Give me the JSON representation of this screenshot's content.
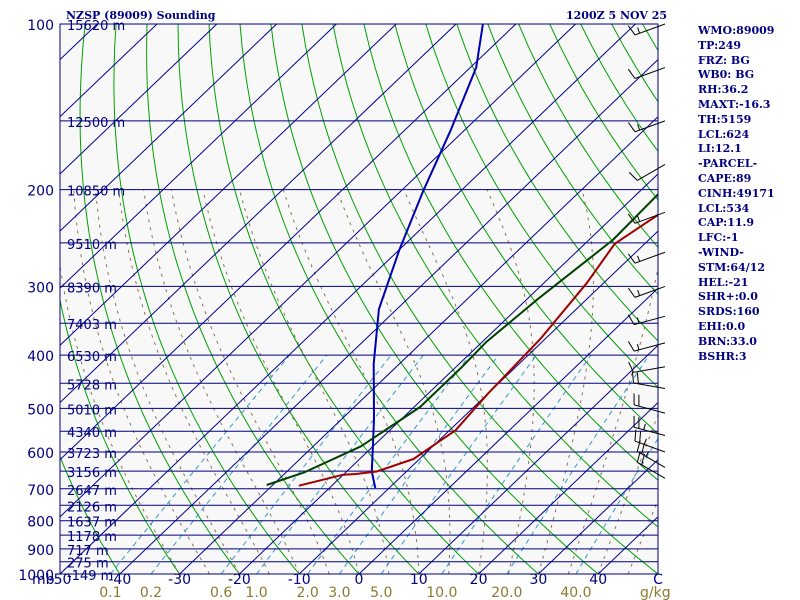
{
  "header": {
    "station": "NZSP (89009) Sounding",
    "datetime": "1200Z  5 NOV 25"
  },
  "indices": [
    "WMO:89009",
    "TP:249",
    "FRZ: BG",
    "WB0: BG",
    "RH:36.2",
    "MAXT:-16.3",
    "TH:5159",
    "LCL:624",
    "LI:12.1",
    "-PARCEL-",
    "CAPE:89",
    "CINH:49171",
    "LCL:534",
    "CAP:11.9",
    "LFC:-1",
    "-WIND-",
    "STM:64/12",
    "HEL:-21",
    "SHR+:0.0",
    "SRDS:160",
    "EHI:0.0",
    "BRN:33.0",
    "BSHR:3"
  ],
  "colors": {
    "isobar": "#000080",
    "isotherm": "#00008b",
    "dry_adiabat": "#00a000",
    "moist_adiabat": "#8b7355",
    "mixing_ratio": "#3399cc",
    "temperature": "#a00000",
    "dewpoint": "#004000",
    "parcel": "#0000b0",
    "text": "#000080",
    "mixing_label": "#8b7a30",
    "background": "#f8f8f8"
  },
  "chart_data": {
    "type": "skew-t",
    "x_unit": "degC",
    "y_unit": "mb",
    "y_scale": "log",
    "pressure_unit_label": "mb",
    "mixing_unit_label": "g/kg",
    "ylim": [
      1000,
      100
    ],
    "xlim": [
      -50,
      50
    ],
    "pressure_ticks": [
      {
        "p": 100,
        "label": "100",
        "height": "15620 m"
      },
      {
        "p": 150,
        "label": "",
        "height": "12500 m"
      },
      {
        "p": 200,
        "label": "200",
        "height": "10850 m"
      },
      {
        "p": 250,
        "label": "",
        "height": "9510 m"
      },
      {
        "p": 300,
        "label": "300",
        "height": "8390 m"
      },
      {
        "p": 350,
        "label": "",
        "height": "7403 m"
      },
      {
        "p": 400,
        "label": "400",
        "height": "6530 m"
      },
      {
        "p": 450,
        "label": "",
        "height": "5728 m"
      },
      {
        "p": 500,
        "label": "500",
        "height": "5010 m"
      },
      {
        "p": 550,
        "label": "",
        "height": "4340 m"
      },
      {
        "p": 600,
        "label": "600",
        "height": "3723 m"
      },
      {
        "p": 650,
        "label": "",
        "height": "3156 m"
      },
      {
        "p": 700,
        "label": "700",
        "height": "2647 m"
      },
      {
        "p": 750,
        "label": "",
        "height": "2126 m"
      },
      {
        "p": 800,
        "label": "800",
        "height": "1637 m"
      },
      {
        "p": 850,
        "label": "",
        "height": "1178 m"
      },
      {
        "p": 900,
        "label": "900",
        "height": "717 m"
      },
      {
        "p": 950,
        "label": "",
        "height": "275 m"
      },
      {
        "p": 1000,
        "label": "1000",
        "height": "-149 m"
      }
    ],
    "temperature_ticks": [
      "-50",
      "-40",
      "-30",
      "-20",
      "-10",
      "0",
      "10",
      "20",
      "30",
      "40",
      "C"
    ],
    "mixing_ratio_ticks": [
      "0.1",
      "0.2",
      "0.6",
      "1.0",
      "2.0",
      "3.0",
      "5.0",
      "10.0",
      "20.0",
      "40.0"
    ],
    "temperature": [
      [
        -25.5,
        691
      ],
      [
        -20,
        660
      ],
      [
        -18,
        658
      ],
      [
        -15,
        651
      ],
      [
        -11,
        618
      ],
      [
        -9,
        548
      ],
      [
        -10,
        470
      ],
      [
        -10.8,
        374
      ],
      [
        -12.8,
        296
      ],
      [
        -15,
        251
      ],
      [
        -10,
        190
      ],
      [
        -5,
        164
      ],
      [
        -5,
        143
      ],
      [
        -2,
        127
      ],
      [
        0,
        100
      ]
    ],
    "dewpoint": [
      [
        -31,
        689
      ],
      [
        -27,
        654
      ],
      [
        -22,
        586
      ],
      [
        -19,
        497
      ],
      [
        -19,
        422
      ],
      [
        -19.3,
        378
      ],
      [
        -18.2,
        316
      ],
      [
        -16,
        247
      ],
      [
        -16.5,
        198
      ],
      [
        -14.5,
        170
      ],
      [
        -12.5,
        150
      ],
      [
        -11,
        138
      ],
      [
        -7,
        120
      ],
      [
        -3,
        100
      ]
    ],
    "parcel": [
      [
        -12.3,
        698
      ],
      [
        -15.8,
        651
      ],
      [
        -24.5,
        524
      ],
      [
        -34.3,
        415
      ],
      [
        -43,
        330
      ],
      [
        -50,
        257
      ],
      [
        -56.3,
        201
      ],
      [
        -62.3,
        156
      ],
      [
        -69,
        120
      ],
      [
        -75.5,
        100
      ]
    ],
    "winds": [
      {
        "p": 100,
        "dir": 250,
        "spd": 15
      },
      {
        "p": 120,
        "dir": 250,
        "spd": 10
      },
      {
        "p": 150,
        "dir": 250,
        "spd": 15
      },
      {
        "p": 180,
        "dir": 240,
        "spd": 10
      },
      {
        "p": 220,
        "dir": 250,
        "spd": 15
      },
      {
        "p": 260,
        "dir": 250,
        "spd": 15
      },
      {
        "p": 300,
        "dir": 250,
        "spd": 15
      },
      {
        "p": 340,
        "dir": 255,
        "spd": 15
      },
      {
        "p": 380,
        "dir": 255,
        "spd": 15
      },
      {
        "p": 420,
        "dir": 260,
        "spd": 10
      },
      {
        "p": 460,
        "dir": 280,
        "spd": 20
      },
      {
        "p": 510,
        "dir": 285,
        "spd": 20
      },
      {
        "p": 560,
        "dir": 285,
        "spd": 25
      },
      {
        "p": 600,
        "dir": 290,
        "spd": 25
      },
      {
        "p": 640,
        "dir": 300,
        "spd": 25
      },
      {
        "p": 670,
        "dir": 300,
        "spd": 20
      }
    ]
  }
}
